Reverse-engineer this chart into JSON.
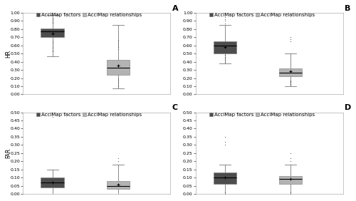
{
  "panel_A": {
    "label": "A",
    "factors": {
      "q1": 0.7,
      "median": 0.77,
      "q3": 0.81,
      "mean": 0.75,
      "whislo": 0.47,
      "whishi": 0.97,
      "fliers": [
        0.53,
        0.54,
        0.56,
        0.58,
        0.6,
        0.62,
        0.64,
        0.66,
        0.88,
        0.89,
        0.91,
        0.93
      ]
    },
    "relationships": {
      "q1": 0.24,
      "median": 0.33,
      "q3": 0.42,
      "mean": 0.35,
      "whislo": 0.07,
      "whishi": 0.85,
      "fliers": [
        0.1,
        0.12,
        0.14,
        0.16,
        0.18,
        0.2,
        0.55,
        0.58,
        0.6,
        0.62,
        0.65,
        0.67
      ]
    },
    "ylabel": "HR",
    "ylim": [
      0.0,
      1.0
    ],
    "yticks": [
      0.0,
      0.1,
      0.2,
      0.3,
      0.4,
      0.5,
      0.6,
      0.7,
      0.8,
      0.9,
      1.0
    ]
  },
  "panel_B": {
    "label": "B",
    "factors": {
      "q1": 0.5,
      "median": 0.6,
      "q3": 0.65,
      "mean": 0.58,
      "whislo": 0.38,
      "whishi": 0.85,
      "fliers": [
        0.4,
        0.42,
        0.44,
        0.46,
        0.48,
        0.87,
        0.9,
        0.92,
        0.95,
        1.0
      ]
    },
    "relationships": {
      "q1": 0.22,
      "median": 0.27,
      "q3": 0.32,
      "mean": 0.28,
      "whislo": 0.1,
      "whishi": 0.5,
      "fliers": [
        0.65,
        0.68,
        0.7,
        0.12,
        0.13,
        0.14,
        0.15,
        0.16,
        0.17
      ]
    },
    "ylabel": "",
    "ylim": [
      0.0,
      1.0
    ],
    "yticks": [
      0.0,
      0.1,
      0.2,
      0.3,
      0.4,
      0.5,
      0.6,
      0.7,
      0.8,
      0.9,
      1.0
    ]
  },
  "panel_C": {
    "label": "C",
    "factors": {
      "q1": 0.04,
      "median": 0.07,
      "q3": 0.1,
      "mean": 0.07,
      "whislo": 0.0,
      "whishi": 0.15,
      "fliers": [
        0.47
      ]
    },
    "relationships": {
      "q1": 0.03,
      "median": 0.05,
      "q3": 0.08,
      "mean": 0.055,
      "whislo": 0.0,
      "whishi": 0.18,
      "fliers": [
        0.2,
        0.22
      ]
    },
    "ylabel": "FAR",
    "ylim": [
      0.0,
      0.5
    ],
    "yticks": [
      0.0,
      0.05,
      0.1,
      0.15,
      0.2,
      0.25,
      0.3,
      0.35,
      0.4,
      0.45,
      0.5
    ]
  },
  "panel_D": {
    "label": "D",
    "factors": {
      "q1": 0.06,
      "median": 0.1,
      "q3": 0.13,
      "mean": 0.1,
      "whislo": 0.0,
      "whishi": 0.18,
      "fliers": [
        0.0,
        0.01,
        0.3,
        0.32,
        0.35
      ]
    },
    "relationships": {
      "q1": 0.06,
      "median": 0.09,
      "q3": 0.11,
      "mean": 0.09,
      "whislo": 0.0,
      "whishi": 0.18,
      "fliers": [
        0.2,
        0.22,
        0.25,
        0.0,
        0.01
      ]
    },
    "ylabel": "",
    "ylim": [
      0.0,
      0.5
    ],
    "yticks": [
      0.0,
      0.05,
      0.1,
      0.15,
      0.2,
      0.25,
      0.3,
      0.35,
      0.4,
      0.45,
      0.5
    ]
  },
  "color_factors": "#4d4d4d",
  "color_relationships": "#b3b3b3",
  "legend_labels": [
    "AcciMap factors",
    "AcciMap relationships"
  ],
  "box_width": 0.35,
  "background_color": "#ffffff",
  "panel_label_fontsize": 8,
  "legend_fontsize": 5,
  "tick_fontsize": 4.5,
  "ylabel_fontsize": 5.5
}
